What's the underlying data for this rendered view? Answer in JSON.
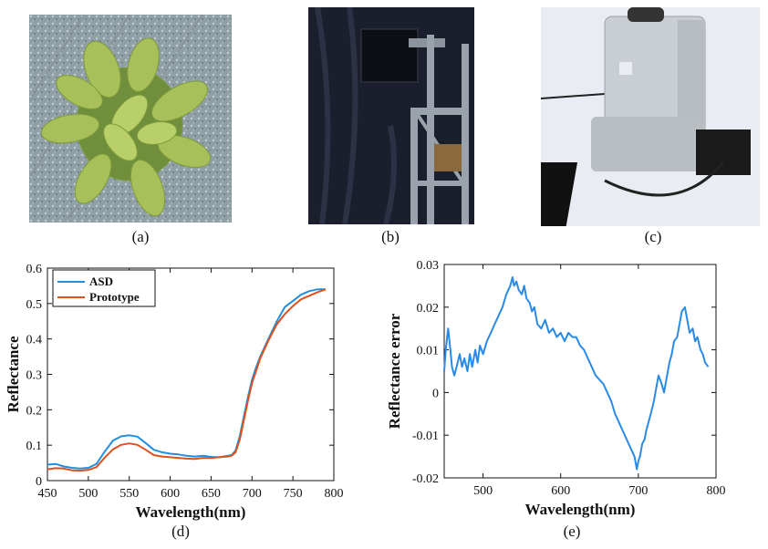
{
  "panels": {
    "a": {
      "label": "(a)",
      "description": "Potted plant viewed from above"
    },
    "b": {
      "label": "(b)",
      "description": "Prototype camera mounted on metal frame"
    },
    "c": {
      "label": "(c)",
      "description": "ASD spectroradiometer device"
    },
    "d": {
      "label": "(d)"
    },
    "e": {
      "label": "(e)"
    }
  },
  "colors": {
    "asd": "#1f8fe0",
    "prototype": "#e0501c",
    "error": "#2b8ae6"
  },
  "chart_data": [
    {
      "type": "line",
      "xlabel": "Wavelength(nm)",
      "ylabel": "Reflectance",
      "xlim": [
        450,
        800
      ],
      "ylim": [
        0,
        0.6
      ],
      "xticks": [
        450,
        500,
        550,
        600,
        650,
        700,
        750,
        800
      ],
      "yticks": [
        0,
        0.1,
        0.2,
        0.3,
        0.4,
        0.5,
        0.6
      ],
      "legend_position": "top-left",
      "series": [
        {
          "name": "ASD",
          "x": [
            450,
            460,
            470,
            480,
            490,
            500,
            510,
            520,
            530,
            540,
            550,
            560,
            570,
            580,
            590,
            600,
            610,
            620,
            630,
            640,
            650,
            660,
            670,
            675,
            680,
            685,
            690,
            695,
            700,
            705,
            710,
            720,
            730,
            740,
            750,
            760,
            770,
            780,
            790
          ],
          "values": [
            0.045,
            0.047,
            0.04,
            0.036,
            0.034,
            0.036,
            0.047,
            0.082,
            0.113,
            0.125,
            0.128,
            0.124,
            0.106,
            0.087,
            0.08,
            0.076,
            0.074,
            0.07,
            0.068,
            0.07,
            0.067,
            0.066,
            0.07,
            0.072,
            0.085,
            0.125,
            0.18,
            0.235,
            0.285,
            0.32,
            0.35,
            0.4,
            0.448,
            0.49,
            0.507,
            0.525,
            0.535,
            0.54,
            0.54
          ]
        },
        {
          "name": "Prototype",
          "x": [
            450,
            460,
            470,
            480,
            490,
            500,
            510,
            520,
            530,
            540,
            550,
            560,
            570,
            580,
            590,
            600,
            610,
            620,
            630,
            640,
            650,
            660,
            670,
            675,
            680,
            685,
            690,
            695,
            700,
            705,
            710,
            720,
            730,
            740,
            750,
            760,
            770,
            780,
            790
          ],
          "values": [
            0.032,
            0.035,
            0.034,
            0.029,
            0.028,
            0.03,
            0.038,
            0.065,
            0.088,
            0.101,
            0.105,
            0.101,
            0.087,
            0.072,
            0.068,
            0.066,
            0.064,
            0.062,
            0.061,
            0.064,
            0.064,
            0.066,
            0.068,
            0.07,
            0.08,
            0.115,
            0.17,
            0.225,
            0.275,
            0.31,
            0.345,
            0.395,
            0.44,
            0.47,
            0.493,
            0.512,
            0.522,
            0.532,
            0.54
          ]
        }
      ]
    },
    {
      "type": "line",
      "xlabel": "Wavelength(nm)",
      "ylabel": "Reflectance error",
      "xlim": [
        450,
        800
      ],
      "ylim": [
        -0.02,
        0.03
      ],
      "xticks": [
        500,
        600,
        700,
        800
      ],
      "yticks": [
        -0.02,
        -0.01,
        0,
        0.01,
        0.02,
        0.03
      ],
      "series": [
        {
          "name": "",
          "x": [
            450,
            452,
            455,
            458,
            460,
            463,
            466,
            470,
            473,
            476,
            480,
            483,
            486,
            490,
            493,
            496,
            500,
            505,
            510,
            515,
            520,
            525,
            530,
            535,
            538,
            540,
            543,
            546,
            550,
            553,
            556,
            560,
            563,
            566,
            570,
            575,
            580,
            585,
            590,
            595,
            600,
            605,
            610,
            615,
            620,
            625,
            630,
            635,
            640,
            645,
            650,
            655,
            660,
            665,
            670,
            675,
            680,
            685,
            690,
            695,
            698,
            700,
            702,
            705,
            708,
            710,
            713,
            716,
            720,
            723,
            726,
            730,
            733,
            736,
            740,
            743,
            746,
            750,
            753,
            756,
            760,
            763,
            766,
            770,
            773,
            776,
            780,
            783,
            786,
            790
          ],
          "values": [
            0.005,
            0.01,
            0.015,
            0.01,
            0.006,
            0.004,
            0.006,
            0.009,
            0.006,
            0.008,
            0.005,
            0.009,
            0.006,
            0.01,
            0.007,
            0.011,
            0.009,
            0.012,
            0.014,
            0.016,
            0.018,
            0.02,
            0.023,
            0.025,
            0.027,
            0.025,
            0.026,
            0.024,
            0.023,
            0.025,
            0.022,
            0.021,
            0.019,
            0.02,
            0.016,
            0.015,
            0.017,
            0.014,
            0.015,
            0.013,
            0.014,
            0.012,
            0.014,
            0.013,
            0.013,
            0.011,
            0.01,
            0.008,
            0.006,
            0.004,
            0.003,
            0.002,
            0.0,
            -0.002,
            -0.005,
            -0.007,
            -0.009,
            -0.011,
            -0.013,
            -0.015,
            -0.018,
            -0.016,
            -0.015,
            -0.012,
            -0.011,
            -0.009,
            -0.007,
            -0.005,
            -0.002,
            0.001,
            0.004,
            0.002,
            0.0,
            0.003,
            0.007,
            0.009,
            0.012,
            0.013,
            0.016,
            0.019,
            0.02,
            0.017,
            0.014,
            0.015,
            0.012,
            0.013,
            0.01,
            0.009,
            0.007,
            0.006
          ]
        }
      ]
    }
  ]
}
